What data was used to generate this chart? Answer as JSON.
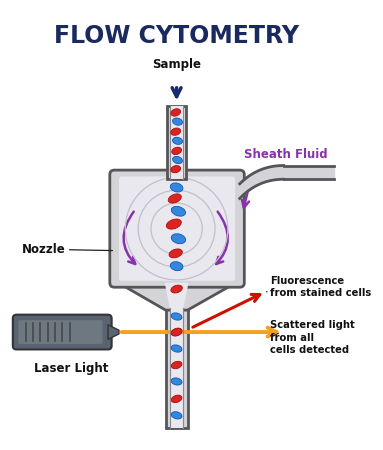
{
  "title": "FLOW CYTOMETRY",
  "title_color": "#1a2a5e",
  "title_fontsize": 17,
  "bg_color": "#ffffff",
  "label_sample": "Sample",
  "label_sheath": "Sheath Fluid",
  "label_nozzle": "Nozzle",
  "label_laser": "Laser Light",
  "label_fluorescence": "Fluorescence\nfrom stained cells",
  "label_scattered": "Scattered light\nfrom all\ncells detected",
  "purple_color": "#8833aa",
  "orange_color": "#f5a020",
  "red_arrow_color": "#cc1100",
  "red_cell_color": "#dd2222",
  "blue_cell_color": "#3388dd",
  "navy_arrow_color": "#1a2a6e",
  "body_fill": "#d4d4d8",
  "body_outline": "#555558",
  "inner_fill": "#e8e8ee",
  "laser_fill": "#606870",
  "label_color": "#111111"
}
